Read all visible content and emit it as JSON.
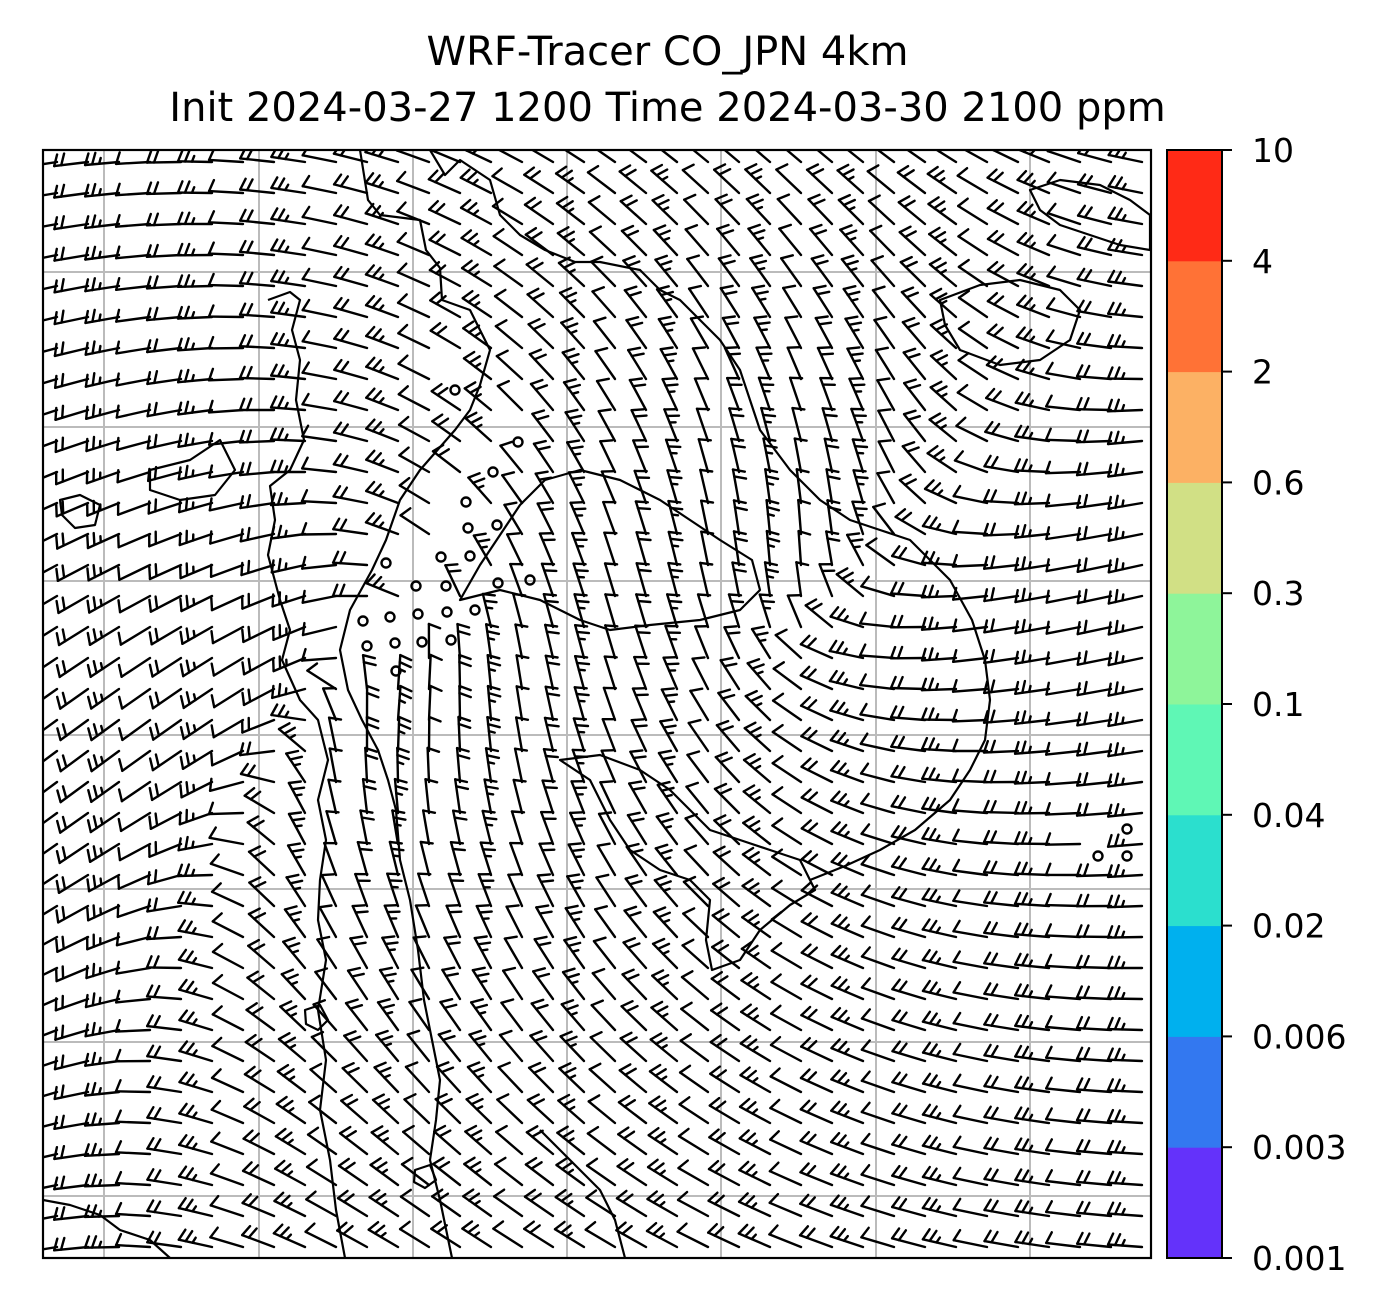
{
  "title": {
    "line1": "WRF-Tracer CO_JPN 4km",
    "line2": "Init 2024-03-27 1200 Time 2024-03-30 2100 ppm"
  },
  "map": {
    "gridlines": true,
    "coastline_color": "#000000",
    "gridline_color": "#bbbbbb",
    "background": "#ffffff",
    "wind_barbs": {
      "color": "#000000",
      "calm_marker": "circle",
      "flow_pattern": "cyclonic-center-left-anticyclonic-right"
    }
  },
  "colorbar": {
    "levels": [
      "0.001",
      "0.003",
      "0.006",
      "0.02",
      "0.04",
      "0.1",
      "0.3",
      "0.6",
      "2",
      "4",
      "10"
    ],
    "colors": [
      "#6432fa",
      "#3378f0",
      "#00b0ee",
      "#2bdfce",
      "#5ff7b5",
      "#8ef59a",
      "#d1e085",
      "#fcb164",
      "#ff7236",
      "#ff2a16"
    ]
  }
}
